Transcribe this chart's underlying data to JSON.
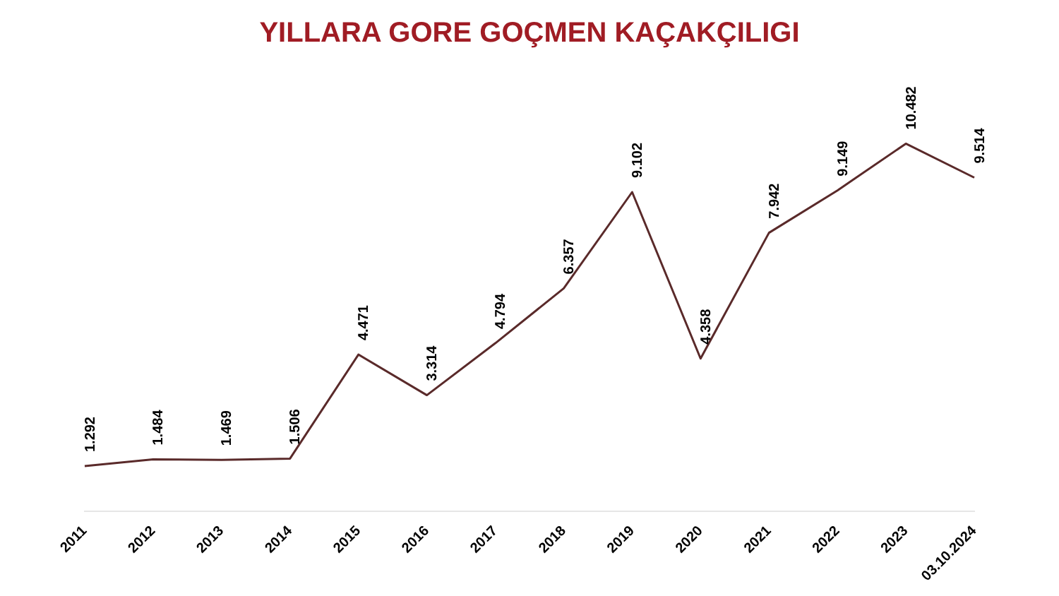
{
  "chart_data": {
    "type": "line",
    "title": "YILLARA GORE GOÇMEN KAÇAKÇILIGI",
    "categories": [
      "2011",
      "2012",
      "2013",
      "2014",
      "2015",
      "2016",
      "2017",
      "2018",
      "2019",
      "2020",
      "2021",
      "2022",
      "2023",
      "03.10.2024"
    ],
    "series": [
      {
        "color": "#5a2a2a",
        "values": [
          1292,
          1484,
          1469,
          1506,
          4471,
          3314,
          4794,
          6357,
          9102,
          4358,
          7942,
          9149,
          10482,
          9514
        ],
        "value_labels": [
          "1.292",
          "1.484",
          "1.469",
          "1.506",
          "4.471",
          "3.314",
          "4.794",
          "6.357",
          "9.102",
          "4.358",
          "7.942",
          "9.149",
          "10.482",
          "9.514"
        ]
      }
    ],
    "tick_labels": "x",
    "grid": false,
    "legend": false,
    "marker": "none",
    "line_style": "solid"
  }
}
